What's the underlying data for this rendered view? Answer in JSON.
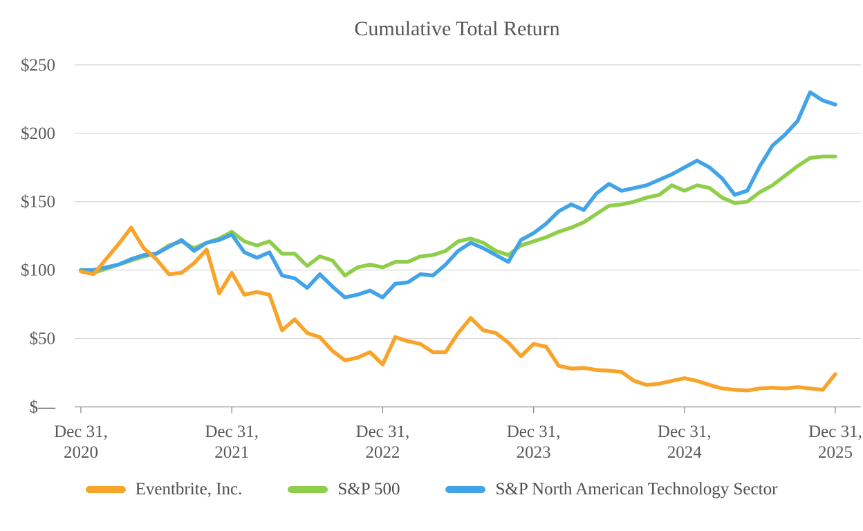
{
  "chart_data": {
    "type": "line",
    "title": "Cumulative Total Return",
    "frequency": "monthly",
    "x_start_label": "Dec 31, 2020",
    "x_end_label": "Dec 31, 2025",
    "ylim": [
      0,
      250
    ],
    "grid": "horizontal",
    "legend_position": "bottom",
    "y_ticks": [
      {
        "label": "$250",
        "value": 250
      },
      {
        "label": "$200",
        "value": 200
      },
      {
        "label": "$150",
        "value": 150
      },
      {
        "label": "$100",
        "value": 100
      },
      {
        "label": "$50",
        "value": 50
      },
      {
        "label": "$—",
        "value": 0
      }
    ],
    "x_ticks": [
      {
        "line1": "Dec 31,",
        "line2": "2020",
        "month_index": 0
      },
      {
        "line1": "Dec 31,",
        "line2": "2021",
        "month_index": 12
      },
      {
        "line1": "Dec 31,",
        "line2": "2022",
        "month_index": 24
      },
      {
        "line1": "Dec 31,",
        "line2": "2023",
        "month_index": 36
      },
      {
        "line1": "Dec 31,",
        "line2": "2024",
        "month_index": 48
      },
      {
        "line1": "Dec 31,",
        "line2": "2025",
        "month_index": 60
      }
    ],
    "series": [
      {
        "name": "S&P 500",
        "color": "#8fce4a",
        "values": [
          100,
          98,
          101,
          104,
          107,
          110,
          112,
          118,
          121,
          116,
          120,
          123,
          128,
          121,
          118,
          121,
          112,
          112,
          103,
          110,
          107,
          96,
          102,
          104,
          102,
          106,
          106,
          110,
          111,
          114,
          121,
          123,
          120,
          114,
          111,
          118,
          121,
          124,
          128,
          131,
          135,
          141,
          147,
          148,
          150,
          153,
          155,
          162,
          158,
          162,
          160,
          153,
          149,
          150,
          157,
          162,
          169,
          176,
          182,
          183,
          183
        ]
      },
      {
        "name": "S&P North American Technology Sector",
        "color": "#42a3e8",
        "values": [
          100,
          100,
          102,
          104,
          108,
          111,
          112,
          117,
          122,
          114,
          120,
          122,
          126,
          113,
          109,
          113,
          96,
          94,
          87,
          97,
          88,
          80,
          82,
          85,
          80,
          90,
          91,
          97,
          96,
          104,
          114,
          120,
          116,
          111,
          106,
          122,
          127,
          134,
          143,
          148,
          144,
          156,
          163,
          158,
          160,
          162,
          166,
          170,
          175,
          180,
          175,
          167,
          155,
          158,
          176,
          191,
          199,
          209,
          230,
          224,
          221
        ]
      },
      {
        "name": "Eventbrite, Inc.",
        "color": "#f8a42a",
        "values": [
          99,
          97,
          108,
          119,
          131,
          116,
          108,
          97,
          98,
          105,
          115,
          83,
          98,
          82,
          84,
          82,
          56,
          64,
          54,
          51,
          41,
          34,
          36,
          40,
          31,
          51,
          48,
          46,
          40,
          40,
          54,
          65,
          56,
          54,
          47,
          37,
          46,
          44,
          30,
          28,
          28.5,
          27,
          26.5,
          25.5,
          19,
          16,
          17,
          19,
          21,
          19,
          16,
          13.5,
          12.5,
          12,
          13.5,
          14,
          13.5,
          14.5,
          13.5,
          12.5,
          24
        ]
      }
    ],
    "legend_order": [
      "Eventbrite, Inc.",
      "S&P 500",
      "S&P North American Technology Sector"
    ]
  },
  "style_colors": {
    "title_text": "#565656",
    "axis_label_text": "#595959",
    "gridline": "#dadada",
    "axis_line": "#8c8c8c",
    "tick_mark": "#8c8c8c"
  }
}
